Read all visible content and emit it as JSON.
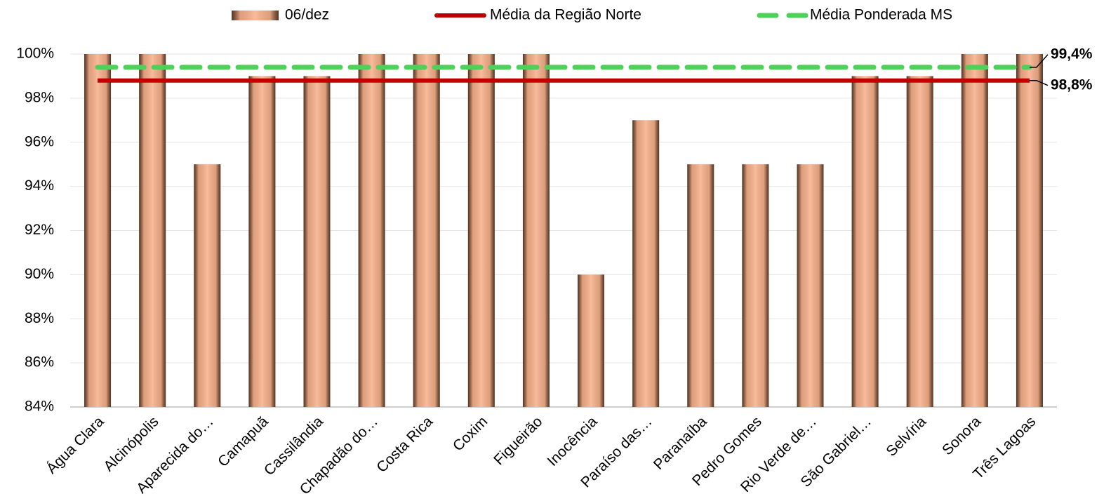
{
  "chart_data": {
    "type": "bar",
    "categories": [
      "Água Clara",
      "Alcinópolis",
      "Aparecida do…",
      "Camapuã",
      "Cassilândia",
      "Chapadão do…",
      "Costa Rica",
      "Coxim",
      "Figueirão",
      "Inocência",
      "Paraíso das…",
      "Paranaíba",
      "Pedro Gomes",
      "Rio Verde de…",
      "São Gabriel…",
      "Selvíria",
      "Sonora",
      "Três Lagoas"
    ],
    "series": [
      {
        "name": "06/dez",
        "type": "bar",
        "color": "#f7b08a",
        "values": [
          100,
          100,
          95,
          99,
          99,
          100,
          100,
          100,
          100,
          90,
          97,
          95,
          95,
          95,
          99,
          99,
          100,
          100
        ]
      },
      {
        "name": "Média da Região Norte",
        "type": "line",
        "color": "#c00000",
        "values": [
          98.8,
          98.8,
          98.8,
          98.8,
          98.8,
          98.8,
          98.8,
          98.8,
          98.8,
          98.8,
          98.8,
          98.8,
          98.8,
          98.8,
          98.8,
          98.8,
          98.8,
          98.8
        ],
        "value_labels": [
          null,
          null,
          null,
          null,
          null,
          null,
          null,
          null,
          null,
          null,
          null,
          null,
          null,
          null,
          null,
          null,
          null,
          "98,8%"
        ]
      },
      {
        "name": "Média Ponderada MS",
        "type": "dashed-line",
        "color": "#4fd05a",
        "values": [
          99.4,
          99.4,
          99.4,
          99.4,
          99.4,
          99.4,
          99.4,
          99.4,
          99.4,
          99.4,
          99.4,
          99.4,
          99.4,
          99.4,
          99.4,
          99.4,
          99.4,
          99.4
        ],
        "value_labels": [
          null,
          null,
          null,
          null,
          null,
          null,
          null,
          null,
          null,
          null,
          null,
          null,
          null,
          null,
          null,
          null,
          null,
          "99,4%"
        ]
      }
    ],
    "ylim": [
      84,
      100
    ],
    "yticks": [
      {
        "value": 84,
        "label": "84%"
      },
      {
        "value": 86,
        "label": "86%"
      },
      {
        "value": 88,
        "label": "88%"
      },
      {
        "value": 90,
        "label": "90%"
      },
      {
        "value": 92,
        "label": "92%"
      },
      {
        "value": 94,
        "label": "94%"
      },
      {
        "value": 96,
        "label": "96%"
      },
      {
        "value": 98,
        "label": "98%"
      },
      {
        "value": 100,
        "label": "100%"
      }
    ],
    "grid": true,
    "legend": "top"
  }
}
